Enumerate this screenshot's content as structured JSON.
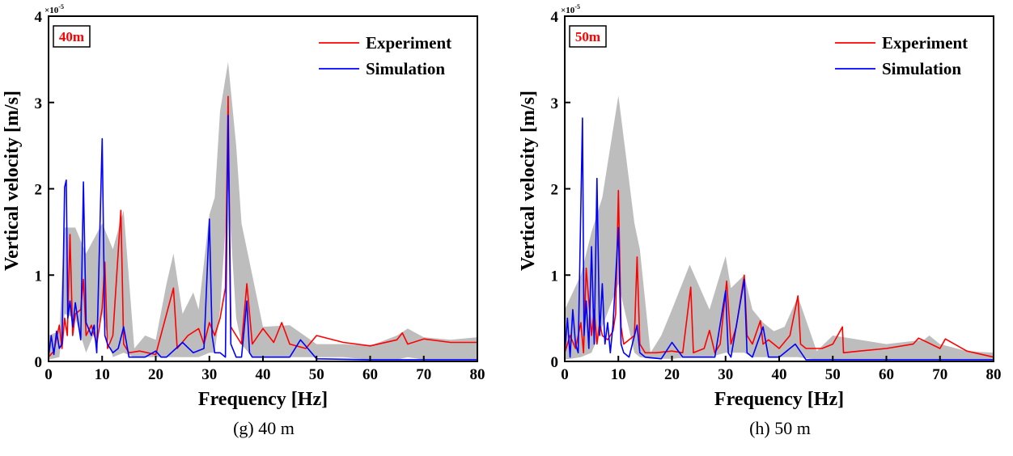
{
  "colors": {
    "experiment": "#ff0000",
    "simulation": "#0000ff",
    "band": "#bdbdbd",
    "axis": "#000000"
  },
  "chart_data": [
    {
      "type": "line",
      "panel_tag": "40m",
      "caption": "(g) 40 m",
      "xlabel": "Frequency [Hz]",
      "ylabel": "Vertical velocity [m/s]",
      "y_scale_multiplier": "×10",
      "y_scale_exponent": "-5",
      "xlim": [
        0,
        80
      ],
      "ylim": [
        0,
        4
      ],
      "xticks": [
        "0",
        "10",
        "20",
        "30",
        "40",
        "50",
        "60",
        "70",
        "80"
      ],
      "yticks": [
        "0",
        "1",
        "2",
        "3",
        "4"
      ],
      "legend_position": "top-right",
      "series": [
        {
          "name": "Experiment",
          "color": "#ff0000",
          "x": [
            0,
            1,
            2,
            2.5,
            3,
            3.5,
            4,
            4.5,
            5,
            6,
            6.5,
            7,
            8,
            9,
            10,
            10.5,
            11,
            12,
            13.5,
            14,
            15,
            17,
            20,
            23.3,
            24,
            26,
            28,
            29,
            30,
            31,
            32,
            33,
            33.5,
            34,
            35,
            36,
            37,
            38,
            40,
            42,
            43.5,
            45,
            48,
            50,
            55,
            60,
            65,
            66,
            67,
            70,
            75,
            80
          ],
          "y": [
            0.05,
            0.12,
            0.42,
            0.15,
            0.5,
            0.3,
            1.47,
            0.3,
            0.55,
            0.6,
            0.95,
            0.3,
            0.42,
            0.2,
            0.62,
            1.15,
            0.15,
            0.3,
            1.75,
            0.2,
            0.1,
            0.12,
            0.08,
            0.85,
            0.15,
            0.3,
            0.38,
            0.2,
            0.45,
            0.3,
            0.5,
            0.85,
            3.07,
            0.4,
            0.3,
            0.2,
            0.9,
            0.2,
            0.38,
            0.22,
            0.45,
            0.2,
            0.15,
            0.3,
            0.22,
            0.18,
            0.25,
            0.33,
            0.2,
            0.26,
            0.22,
            0.22
          ]
        },
        {
          "name": "Simulation",
          "color": "#0000ff",
          "x": [
            0,
            0.5,
            1,
            1.5,
            2,
            2.5,
            3,
            3.3,
            3.6,
            4,
            4.5,
            5,
            6,
            6.5,
            7,
            8,
            8.5,
            9,
            10,
            10.5,
            11,
            12,
            13,
            14,
            15,
            18,
            20,
            21,
            22,
            25,
            27,
            29,
            30,
            30.5,
            31,
            32,
            33,
            33.5,
            34,
            35,
            36,
            37,
            37.5,
            38,
            40,
            45,
            47,
            50,
            60,
            80
          ],
          "y": [
            0.05,
            0.3,
            0.08,
            0.35,
            0.15,
            0.2,
            2.02,
            2.1,
            0.5,
            0.7,
            0.4,
            0.68,
            0.25,
            2.08,
            0.45,
            0.3,
            0.42,
            0.1,
            2.58,
            0.3,
            0.2,
            0.1,
            0.15,
            0.4,
            0.05,
            0.05,
            0.12,
            0.05,
            0.05,
            0.22,
            0.1,
            0.15,
            1.65,
            0.3,
            0.1,
            0.1,
            0.05,
            2.85,
            0.2,
            0.05,
            0.05,
            0.7,
            0.1,
            0.05,
            0.05,
            0.05,
            0.25,
            0.03,
            0.02,
            0.02
          ]
        },
        {
          "name": "",
          "type": "area",
          "x": [
            0,
            2,
            3,
            5,
            7,
            10,
            12,
            14,
            16,
            18,
            20,
            22,
            23.3,
            25,
            27,
            28,
            30,
            31,
            32,
            33.5,
            35,
            36,
            38,
            40,
            45,
            50,
            55,
            60,
            65,
            67,
            70,
            75,
            80
          ],
          "y_upper": [
            0.3,
            0.35,
            1.55,
            1.55,
            1.25,
            1.6,
            1.3,
            1.75,
            0.15,
            0.3,
            0.25,
            0.9,
            1.25,
            0.55,
            0.8,
            0.6,
            1.7,
            1.9,
            2.9,
            3.47,
            2.5,
            1.6,
            1.0,
            0.4,
            0.42,
            0.2,
            0.2,
            0.18,
            0.3,
            0.38,
            0.28,
            0.25,
            0.28
          ],
          "y_lower": [
            0.02,
            0.05,
            0.55,
            0.5,
            0.1,
            0.55,
            0.05,
            0.1,
            0.05,
            0.05,
            0.05,
            0.05,
            0.05,
            0.05,
            0.05,
            0.05,
            0.1,
            0.1,
            0.6,
            2.0,
            0.5,
            0.2,
            0.05,
            0.05,
            0.05,
            0.05,
            0.05,
            0.02,
            0.02,
            0.05,
            0.02,
            0.02,
            0.02
          ]
        }
      ]
    },
    {
      "type": "line",
      "panel_tag": "50m",
      "caption": "(h) 50 m",
      "xlabel": "Frequency [Hz]",
      "ylabel": "Vertical velocity [m/s]",
      "y_scale_multiplier": "×10",
      "y_scale_exponent": "-5",
      "xlim": [
        0,
        80
      ],
      "ylim": [
        0,
        4
      ],
      "xticks": [
        "0",
        "10",
        "20",
        "30",
        "40",
        "50",
        "60",
        "70",
        "80"
      ],
      "yticks": [
        "0",
        "1",
        "2",
        "3",
        "4"
      ],
      "legend_position": "top-right",
      "series": [
        {
          "name": "Experiment",
          "color": "#ff0000",
          "x": [
            0,
            1,
            2,
            3,
            3.5,
            4,
            5,
            5.5,
            6,
            6.5,
            7,
            8,
            9,
            9.5,
            10,
            10.5,
            11,
            12,
            13,
            13.5,
            14,
            15,
            17,
            20,
            22,
            23.5,
            24,
            26,
            27,
            28,
            29,
            30.2,
            31,
            32,
            33.5,
            34,
            35,
            36.5,
            37,
            38,
            40,
            42,
            43.5,
            44,
            45,
            48,
            50,
            51.8,
            52,
            55,
            60,
            65,
            66,
            70,
            71,
            75,
            80
          ],
          "y": [
            0.1,
            0.3,
            0.15,
            0.45,
            0.1,
            1.08,
            0.3,
            0.6,
            0.2,
            0.45,
            0.3,
            0.25,
            0.35,
            0.55,
            1.98,
            0.4,
            0.2,
            0.25,
            0.3,
            1.21,
            0.2,
            0.1,
            0.1,
            0.12,
            0.1,
            0.86,
            0.1,
            0.15,
            0.36,
            0.1,
            0.2,
            0.93,
            0.2,
            0.4,
            1.0,
            0.3,
            0.2,
            0.47,
            0.2,
            0.25,
            0.15,
            0.3,
            0.76,
            0.2,
            0.15,
            0.15,
            0.2,
            0.4,
            0.1,
            0.12,
            0.15,
            0.2,
            0.27,
            0.15,
            0.26,
            0.12,
            0.05
          ]
        },
        {
          "name": "Simulation",
          "color": "#0000ff",
          "x": [
            0,
            0.5,
            1,
            1.5,
            2,
            2.5,
            3,
            3.3,
            3.6,
            4,
            4.5,
            5,
            5.5,
            6,
            6.5,
            7,
            7.5,
            8,
            8.5,
            9,
            10,
            10.5,
            11,
            12,
            13.5,
            14,
            15,
            18,
            20,
            22,
            25,
            28,
            30,
            30.5,
            31,
            33.5,
            34,
            35,
            37,
            38,
            40,
            43,
            45,
            50,
            60,
            80
          ],
          "y": [
            0.1,
            0.5,
            0.05,
            0.6,
            0.2,
            0.1,
            1.8,
            2.82,
            0.3,
            0.7,
            0.15,
            1.33,
            0.2,
            2.12,
            0.3,
            0.9,
            0.2,
            0.45,
            0.1,
            0.42,
            1.55,
            0.2,
            0.1,
            0.05,
            0.42,
            0.1,
            0.05,
            0.03,
            0.22,
            0.05,
            0.05,
            0.05,
            0.82,
            0.1,
            0.05,
            0.95,
            0.1,
            0.05,
            0.4,
            0.05,
            0.05,
            0.2,
            0.02,
            0.02,
            0.02,
            0.02
          ]
        },
        {
          "name": "",
          "type": "area",
          "x": [
            0,
            3,
            5,
            7,
            10,
            13,
            14,
            16,
            18,
            20,
            23.3,
            27,
            30,
            31,
            33.5,
            35,
            37,
            39,
            41,
            43.5,
            47,
            50,
            55,
            60,
            67,
            68,
            70,
            75,
            80
          ],
          "y_upper": [
            0.6,
            1.0,
            1.5,
            1.9,
            3.08,
            1.6,
            1.3,
            0.1,
            0.3,
            0.6,
            1.12,
            0.6,
            1.22,
            0.85,
            1.0,
            0.6,
            0.45,
            0.35,
            0.4,
            0.75,
            0.12,
            0.3,
            0.25,
            0.2,
            0.25,
            0.3,
            0.2,
            0.12,
            0.1
          ],
          "y_lower": [
            0.02,
            0.05,
            0.1,
            0.4,
            0.9,
            0.1,
            0.05,
            0.03,
            0.03,
            0.03,
            0.05,
            0.05,
            0.1,
            0.1,
            0.1,
            0.05,
            0.05,
            0.05,
            0.05,
            0.05,
            0.02,
            0.02,
            0.02,
            0.02,
            0.02,
            0.02,
            0.02,
            0.02,
            0.02
          ]
        }
      ]
    }
  ]
}
